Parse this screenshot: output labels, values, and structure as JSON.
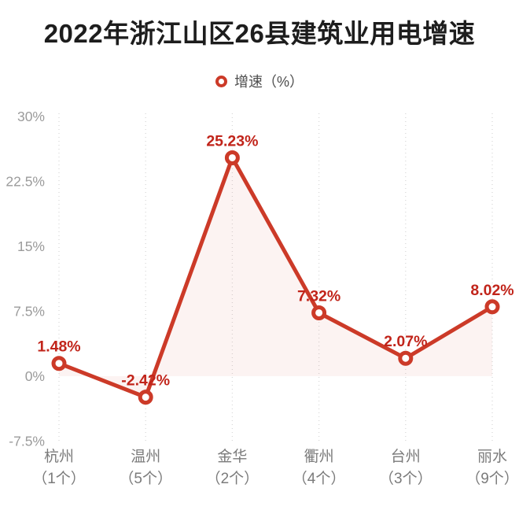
{
  "header": {
    "title": "2022年浙江山区26县建筑业用电增速"
  },
  "legend": {
    "series_label": "增速（%）",
    "marker_icon": "ring-icon"
  },
  "colors": {
    "title_text": "#1d1d1d",
    "line": "#cc3a28",
    "marker_stroke": "#cc3a28",
    "marker_fill": "#ffffff",
    "value_label": "#c1241a",
    "area_fill": "rgba(204,58,40,0.06)",
    "gridline": "#d9d9d9",
    "ytick_text": "#9b9b9b",
    "category_text": "#7b7b7b",
    "legend_text": "#4d4d4d",
    "background": "#ffffff"
  },
  "chart_data": {
    "type": "line",
    "title": "2022年浙江山区26县建筑业用电增速",
    "series": [
      {
        "name": "增速（%）",
        "values": [
          1.48,
          -2.42,
          25.23,
          7.32,
          2.07,
          8.02
        ],
        "value_labels": [
          "1.48%",
          "-2.42%",
          "25.23%",
          "7.32%",
          "2.07%",
          "8.02%"
        ]
      }
    ],
    "categories": [
      "杭州",
      "温州",
      "金华",
      "衢州",
      "台州",
      "丽水"
    ],
    "category_sublabels": [
      "（1个）",
      "（5个）",
      "（2个）",
      "（4个）",
      "（3个）",
      "（9个）"
    ],
    "xlabel": "",
    "ylabel": "",
    "ylim": [
      -7.5,
      30
    ],
    "yticks": [
      30,
      22.5,
      15,
      7.5,
      0,
      -7.5
    ],
    "ytick_labels": [
      "30%",
      "22.5%",
      "15%",
      "7.5%",
      "0%",
      "-7.5%"
    ],
    "grid": "vertical-dotted",
    "legend_position": "top",
    "area_fill": true,
    "marker": "open-circle"
  }
}
